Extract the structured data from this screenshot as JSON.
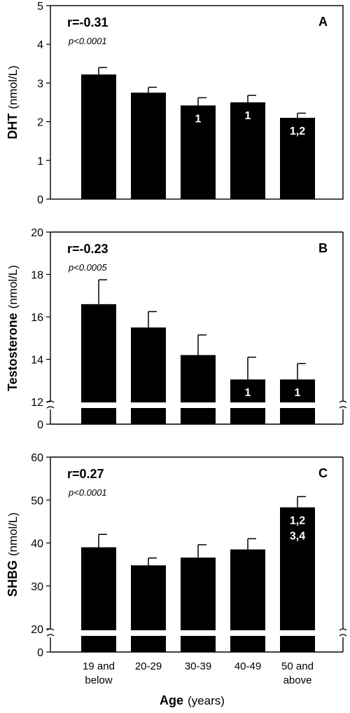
{
  "chart_data": [
    {
      "type": "bar",
      "panel": "A",
      "ylabel": "DHT",
      "yunit": "(nmol/L)",
      "ylim": [
        0,
        5
      ],
      "yticks": [
        "0",
        "1",
        "2",
        "3",
        "4",
        "5"
      ],
      "stat": {
        "r": "r=-0.31",
        "p": "p<0.0001"
      },
      "categories": [
        "19 and below",
        "20-29",
        "30-39",
        "40-49",
        "50 and above"
      ],
      "values": [
        3.22,
        2.75,
        2.42,
        2.5,
        2.1
      ],
      "errors": [
        0.18,
        0.14,
        0.2,
        0.18,
        0.12
      ],
      "bar_labels": [
        [],
        [],
        [
          "1"
        ],
        [
          "1"
        ],
        [
          "1,2"
        ]
      ],
      "axis_break": false
    },
    {
      "type": "bar",
      "panel": "B",
      "ylabel": "Testosterone",
      "yunit": "(nmol/L)",
      "ylim": [
        12,
        20
      ],
      "yticks": [
        "12",
        "14",
        "16",
        "18",
        "20"
      ],
      "break_tick": "0",
      "stat": {
        "r": "r=-0.23",
        "p": "p<0.0005"
      },
      "categories": [
        "19 and below",
        "20-29",
        "30-39",
        "40-49",
        "50 and above"
      ],
      "values": [
        16.6,
        15.5,
        14.2,
        13.05,
        13.05
      ],
      "errors": [
        1.15,
        0.75,
        0.95,
        1.05,
        0.75
      ],
      "bar_labels": [
        [],
        [],
        [],
        [
          "1"
        ],
        [
          "1"
        ]
      ],
      "axis_break": true
    },
    {
      "type": "bar",
      "panel": "C",
      "ylabel": "SHBG",
      "yunit": "(nmol/L)",
      "ylim": [
        20,
        60
      ],
      "yticks": [
        "20",
        "30",
        "40",
        "50",
        "60"
      ],
      "break_tick": "0",
      "stat": {
        "r": "r=0.27",
        "p": "p<0.0001"
      },
      "categories": [
        "19 and below",
        "20-29",
        "30-39",
        "40-49",
        "50 and above"
      ],
      "values": [
        39.0,
        34.8,
        36.6,
        38.5,
        48.3
      ],
      "errors": [
        3.0,
        1.7,
        3.0,
        2.5,
        2.5
      ],
      "bar_labels": [
        [],
        [],
        [],
        [],
        [
          "1,2",
          "3,4"
        ]
      ],
      "axis_break": true
    }
  ],
  "xaxis": {
    "categories": [
      [
        "19 and",
        "below"
      ],
      [
        "20-29"
      ],
      [
        "30-39"
      ],
      [
        "40-49"
      ],
      [
        "50 and",
        "above"
      ]
    ],
    "label_main": "Age",
    "label_unit": "(years)"
  }
}
